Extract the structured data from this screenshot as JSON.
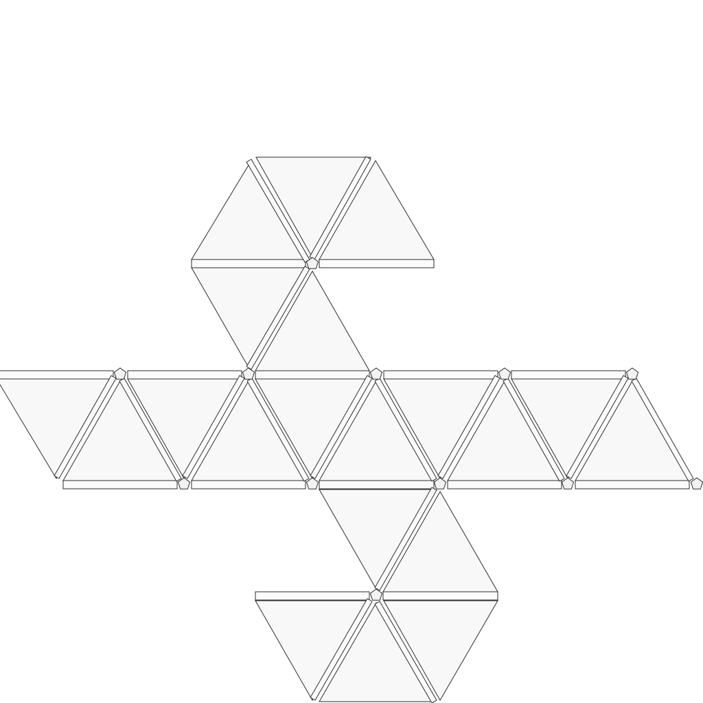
{
  "diagram": {
    "type": "polyhedron-net",
    "polyhedron": "icosahedron",
    "face_shape": "equilateral-triangle",
    "face_count": 20,
    "colors": {
      "background": "#ffffff",
      "face_fill": "#f8f8f8",
      "strip_fill": "#fbfbfb",
      "cap_fill": "#f2f2f2",
      "stroke": "#2b2b2b"
    }
  }
}
